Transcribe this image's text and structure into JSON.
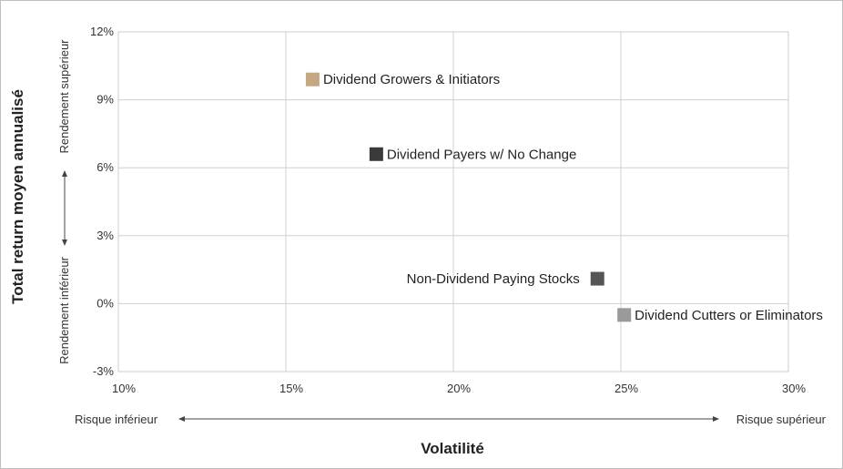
{
  "chart_data": {
    "type": "scatter",
    "title": "",
    "xlabel": "Volatilité",
    "ylabel": "Total return moyen annualisé",
    "xlim": [
      10,
      30
    ],
    "ylim": [
      -3,
      12
    ],
    "x_ticks": [
      10,
      15,
      20,
      25,
      30
    ],
    "y_ticks": [
      -3,
      0,
      3,
      6,
      9,
      12
    ],
    "x_tick_labels": [
      "10%",
      "15%",
      "20%",
      "25%",
      "30%"
    ],
    "y_tick_labels": [
      "-3%",
      "0%",
      "3%",
      "6%",
      "9%",
      "12%"
    ],
    "grid": true,
    "legend": "none",
    "x_low_label": "Risque inférieur",
    "x_high_label": "Risque supérieur",
    "y_low_label": "Rendement inférieur",
    "y_high_label": "Rendement supérieur",
    "points": [
      {
        "label": "Dividend Growers & Initiators",
        "x": 15.8,
        "y": 9.9,
        "color": "#c4a882",
        "label_side": "right"
      },
      {
        "label": "Dividend Payers w/ No Change",
        "x": 17.7,
        "y": 6.6,
        "color": "#3a3a3a",
        "label_side": "right"
      },
      {
        "label": "Non-Dividend Paying Stocks",
        "x": 24.3,
        "y": 1.1,
        "color": "#555555",
        "label_side": "left"
      },
      {
        "label": "Dividend Cutters or Eliminators",
        "x": 25.1,
        "y": -0.5,
        "color": "#9a9a9a",
        "label_side": "right"
      }
    ]
  }
}
